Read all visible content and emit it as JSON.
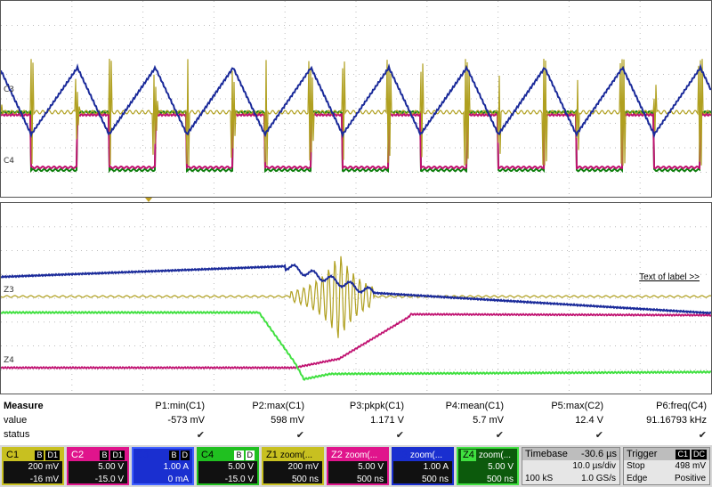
{
  "channels_top": {
    "c3_marker": "C3",
    "c4_marker": "C4"
  },
  "channels_bottom": {
    "z3_marker": "Z3",
    "z4_marker": "Z4"
  },
  "label_link": "Text of label >>",
  "measure": {
    "header": "Measure",
    "row_value": "value",
    "row_status": "status",
    "params": [
      {
        "name": "P1:min(C1)",
        "value": "-573 mV"
      },
      {
        "name": "P2:max(C1)",
        "value": "598 mV"
      },
      {
        "name": "P3:pkpk(C1)",
        "value": "1.171 V"
      },
      {
        "name": "P4:mean(C1)",
        "value": "5.7 mV"
      },
      {
        "name": "P5:max(C2)",
        "value": "12.4 V"
      },
      {
        "name": "P6:freq(C4)",
        "value": "91.16793 kHz"
      }
    ],
    "check": "✔"
  },
  "descriptors": [
    {
      "id": "C1",
      "tags": [
        "B",
        "D1"
      ],
      "v1": "200 mV",
      "v2": "-16 mV",
      "color": "#c8c020",
      "bg": "#111"
    },
    {
      "id": "C2",
      "tags": [
        "B",
        "D1"
      ],
      "v1": "5.00 V",
      "v2": "-15.0 V",
      "color": "#e0148c",
      "bg": "#111"
    },
    {
      "id": "C3",
      "tags": [
        "B",
        "D"
      ],
      "v1": "1.00 A",
      "v2": "0 mA",
      "color": "#1030e0",
      "bg": "#1030c0"
    },
    {
      "id": "C4",
      "tags": [
        "B",
        "D"
      ],
      "v1": "5.00 V",
      "v2": "-15.0 V",
      "color": "#20c020",
      "bg": "#111"
    },
    {
      "id": "Z1",
      "title": "zoom(...",
      "v1": "200 mV",
      "v2": "500 ns",
      "color": "#c8c020",
      "bg": "#111"
    },
    {
      "id": "Z2",
      "title": "zoom(...",
      "v1": "5.00 V",
      "v2": "500 ns",
      "color": "#e0148c",
      "bg": "#111"
    },
    {
      "id": "Z3",
      "title": "zoom(...",
      "v1": "1.00 A",
      "v2": "500 ns",
      "color": "#1030e0",
      "bg": "#111"
    },
    {
      "id": "Z4",
      "title": "zoom(...",
      "v1": "5.00 V",
      "v2": "500 ns",
      "color": "#20c020",
      "bg": "#0a5a0a"
    }
  ],
  "timebase": {
    "label": "Timebase",
    "offset": "-30.6 µs",
    "div": "10.0 µs/div",
    "samples": "100 kS",
    "rate": "1.0 GS/s"
  },
  "trigger": {
    "label": "Trigger",
    "tags": [
      "C1",
      "DC"
    ],
    "mode": "Stop",
    "level": "498 mV",
    "type": "Edge",
    "slope": "Positive"
  },
  "colors": {
    "c1": "#b0a020",
    "c2": "#c01070",
    "c3": "#1a2a9a",
    "c4": "#108010",
    "c4z": "#40e040"
  }
}
